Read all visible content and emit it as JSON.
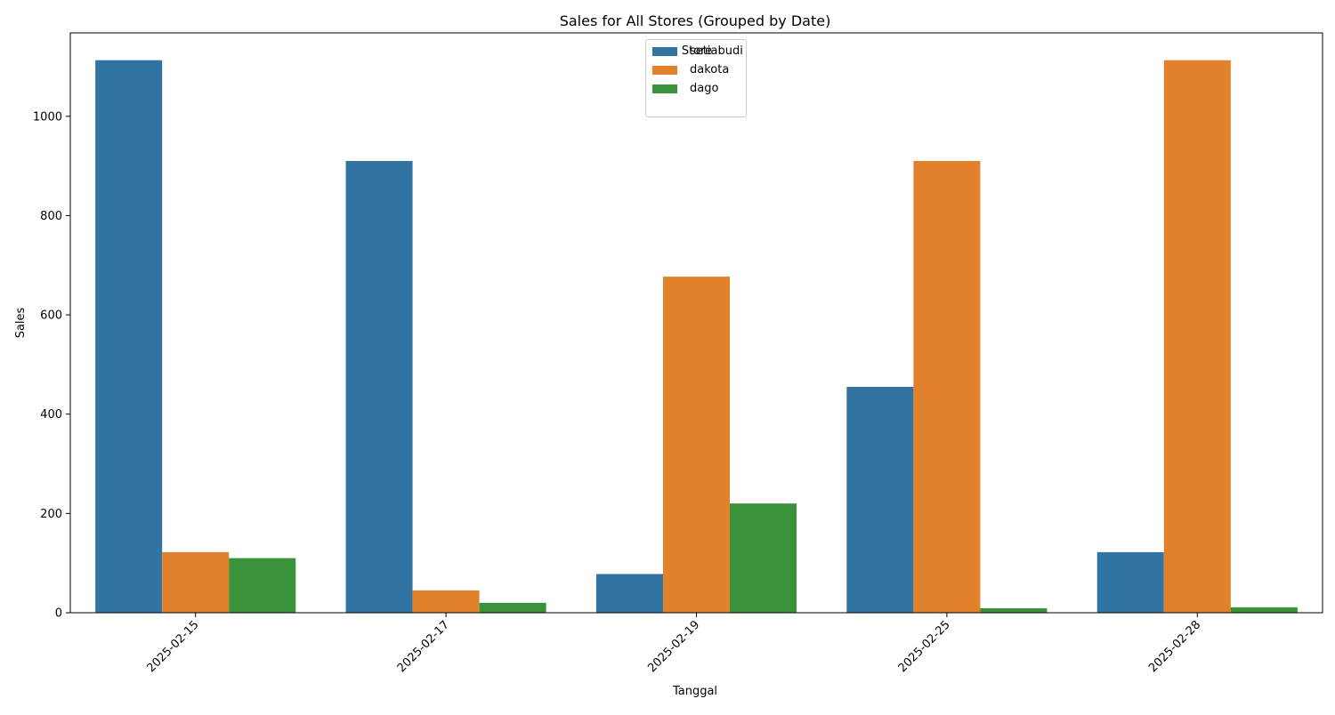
{
  "chart_data": {
    "type": "bar",
    "title": "Sales for All Stores (Grouped by Date)",
    "xlabel": "Tanggal",
    "ylabel": "Sales",
    "categories": [
      "2025-02-15",
      "2025-02-17",
      "2025-02-19",
      "2025-02-25",
      "2025-02-28"
    ],
    "series": [
      {
        "name": "setiabudi",
        "color": "#3274a1",
        "values": [
          1113,
          910,
          78,
          455,
          122
        ]
      },
      {
        "name": "dakota",
        "color": "#e1812c",
        "values": [
          122,
          45,
          677,
          910,
          1113
        ]
      },
      {
        "name": "dago",
        "color": "#3a923a",
        "values": [
          110,
          20,
          220,
          9,
          11
        ]
      }
    ],
    "ylim": [
      0,
      1168
    ],
    "yticks": [
      0,
      200,
      400,
      600,
      800,
      1000
    ],
    "legend": {
      "title": "Store",
      "placement": "upper-center"
    },
    "grid": false
  }
}
